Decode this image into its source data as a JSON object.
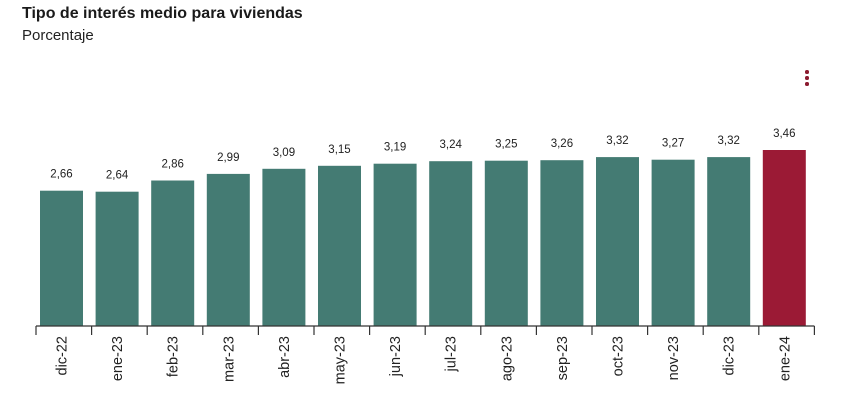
{
  "header": {
    "title": "Tipo de interés medio para viviendas",
    "subtitle": "Porcentaje"
  },
  "menu_icon": "vertical-ellipsis-icon",
  "colors": {
    "bar": "#447b73",
    "highlight": "#9b1a35",
    "axis": "#333333"
  },
  "chart_data": {
    "type": "bar",
    "title": "Tipo de interés medio para viviendas",
    "subtitle": "Porcentaje",
    "categories": [
      "dic-22",
      "ene-23",
      "feb-23",
      "mar-23",
      "abr-23",
      "may-23",
      "jun-23",
      "jul-23",
      "ago-23",
      "sep-23",
      "oct-23",
      "nov-23",
      "dic-23",
      "ene-24"
    ],
    "values": [
      2.66,
      2.64,
      2.86,
      2.99,
      3.09,
      3.15,
      3.19,
      3.24,
      3.25,
      3.26,
      3.32,
      3.27,
      3.32,
      3.46
    ],
    "value_labels": [
      "2,66",
      "2,64",
      "2,86",
      "2,99",
      "3,09",
      "3,15",
      "3,19",
      "3,24",
      "3,25",
      "3,26",
      "3,32",
      "3,27",
      "3,32",
      "3,46"
    ],
    "highlight_index": 13,
    "ylim": [
      0,
      3.46
    ],
    "grid": false,
    "legend": "none"
  }
}
